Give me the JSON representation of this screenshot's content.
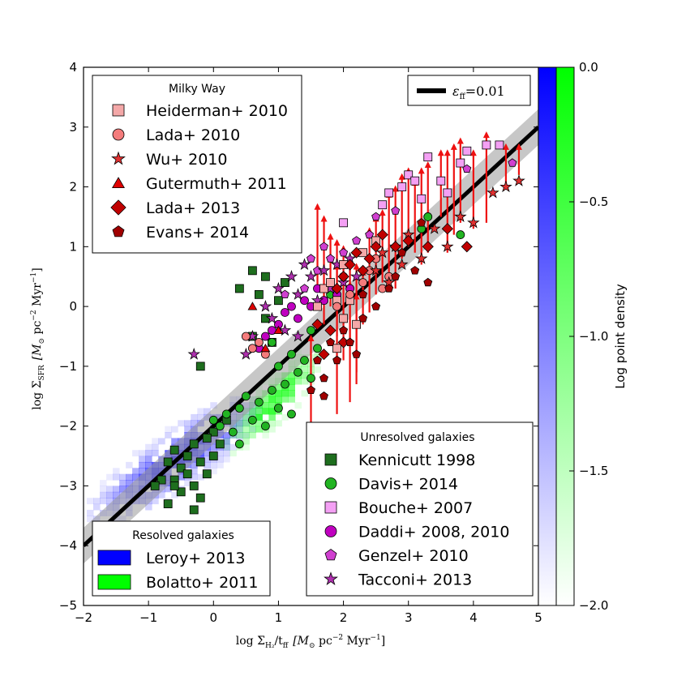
{
  "chart_data": {
    "type": "scatter",
    "xlabel_parts": {
      "base": "log Σ",
      "sub": "H₂",
      "mid": "/t",
      "sub2": "ff",
      "units": "[M",
      "sun": "⊙",
      "rest": " pc",
      "exp": "−2",
      "myr": " Myr",
      "exp2": "−1",
      "close": "]"
    },
    "ylabel_parts": {
      "base": "log Σ",
      "sub": "SFR",
      "units": "[M",
      "sun": "⊙",
      "rest": " pc",
      "exp": "−2",
      "myr": " Myr",
      "exp2": "−1",
      "close": "]"
    },
    "xlim": [
      -2,
      5
    ],
    "ylim": [
      -5,
      4
    ],
    "x_ticks": [
      "−2",
      "−1",
      "0",
      "1",
      "2",
      "3",
      "4",
      "5"
    ],
    "y_ticks": [
      "−5",
      "−4",
      "−3",
      "−2",
      "−1",
      "0",
      "1",
      "2",
      "3",
      "4"
    ],
    "fit_line": {
      "label_eps": "ε",
      "label_sub": "ff",
      "label_val": "=0.01",
      "slope": 1,
      "intercept": -2,
      "band": 0.3
    },
    "colorbar": {
      "label": "Log point density",
      "ticks": [
        "0.0",
        "−0.5",
        "−1.0",
        "−1.5",
        "−2.0"
      ],
      "range": [
        -2.0,
        0.0
      ]
    },
    "legends": {
      "milky_way": {
        "title": "Milky Way",
        "entries": [
          {
            "label": "Heiderman+ 2010",
            "marker": "square",
            "color": "#f4a8a8"
          },
          {
            "label": "Lada+ 2010",
            "marker": "circle",
            "color": "#f47c7c"
          },
          {
            "label": "Wu+ 2010",
            "marker": "star",
            "color": "#e03030"
          },
          {
            "label": "Gutermuth+ 2011",
            "marker": "triangle",
            "color": "#e00000"
          },
          {
            "label": "Lada+ 2013",
            "marker": "diamond",
            "color": "#c00000"
          },
          {
            "label": "Evans+ 2014",
            "marker": "pentagon",
            "color": "#a00000"
          }
        ]
      },
      "unresolved": {
        "title": "Unresolved galaxies",
        "entries": [
          {
            "label": "Kennicutt 1998",
            "marker": "square",
            "color": "#1e6e1e"
          },
          {
            "label": "Davis+ 2014",
            "marker": "circle",
            "color": "#22b422"
          },
          {
            "label": "Bouche+ 2007",
            "marker": "square",
            "color": "#f4a0f4"
          },
          {
            "label": "Daddi+ 2008, 2010",
            "marker": "circle",
            "color": "#c000c0"
          },
          {
            "label": "Genzel+ 2010",
            "marker": "pentagon",
            "color": "#d040d0"
          },
          {
            "label": "Tacconi+ 2013",
            "marker": "star",
            "color": "#b030b0"
          }
        ]
      },
      "resolved": {
        "title": "Resolved galaxies",
        "entries": [
          {
            "label": "Leroy+ 2013",
            "color": "#0000ff"
          },
          {
            "label": "Bolatto+ 2011",
            "color": "#00ff00"
          }
        ]
      }
    },
    "series": [
      {
        "name": "Kennicutt 1998",
        "marker": "square",
        "color": "#1e6e1e",
        "points": [
          [
            -0.7,
            -2.6
          ],
          [
            -0.6,
            -2.4
          ],
          [
            -0.5,
            -2.7
          ],
          [
            -0.4,
            -2.5
          ],
          [
            -0.3,
            -2.3
          ],
          [
            -0.2,
            -2.6
          ],
          [
            -0.1,
            -2.8
          ],
          [
            0.0,
            -2.5
          ],
          [
            -0.8,
            -2.9
          ],
          [
            -0.9,
            -3.0
          ],
          [
            -0.7,
            -3.3
          ],
          [
            -0.5,
            -3.1
          ],
          [
            -0.3,
            -3.0
          ],
          [
            -0.2,
            -3.2
          ],
          [
            -0.4,
            -2.8
          ],
          [
            -0.6,
            -2.9
          ],
          [
            0.0,
            -2.1
          ],
          [
            0.1,
            -2.3
          ],
          [
            -0.1,
            -2.2
          ],
          [
            0.2,
            -1.9
          ],
          [
            0.4,
            0.3
          ],
          [
            0.6,
            0.6
          ],
          [
            0.7,
            0.2
          ],
          [
            0.8,
            0.5
          ],
          [
            1.0,
            0.1
          ],
          [
            1.1,
            0.4
          ],
          [
            0.6,
            -0.5
          ],
          [
            0.9,
            -0.6
          ],
          [
            0.8,
            -0.2
          ],
          [
            -0.2,
            -1.0
          ],
          [
            -0.3,
            -3.4
          ],
          [
            -0.6,
            -3.0
          ]
        ]
      },
      {
        "name": "Davis+ 2014",
        "marker": "circle",
        "color": "#22b422",
        "points": [
          [
            0.4,
            -1.7
          ],
          [
            0.5,
            -1.5
          ],
          [
            0.6,
            -1.9
          ],
          [
            0.7,
            -1.6
          ],
          [
            0.8,
            -2.0
          ],
          [
            0.9,
            -1.4
          ],
          [
            1.0,
            -1.7
          ],
          [
            1.1,
            -1.3
          ],
          [
            1.2,
            -1.8
          ],
          [
            1.3,
            -1.1
          ],
          [
            1.4,
            -0.9
          ],
          [
            1.5,
            -1.2
          ],
          [
            1.6,
            -0.7
          ],
          [
            0.3,
            -2.1
          ],
          [
            0.2,
            -1.8
          ],
          [
            0.1,
            -2.0
          ],
          [
            1.0,
            -1.0
          ],
          [
            1.2,
            -0.8
          ],
          [
            0.9,
            -0.6
          ],
          [
            1.5,
            -0.4
          ],
          [
            1.7,
            0.1
          ],
          [
            1.8,
            0.2
          ],
          [
            3.2,
            1.3
          ],
          [
            3.3,
            1.5
          ],
          [
            3.8,
            1.2
          ],
          [
            0.0,
            -1.9
          ],
          [
            0.4,
            -2.3
          ]
        ]
      },
      {
        "name": "Bouche+ 2007",
        "marker": "square",
        "color": "#f4a0f4",
        "points": [
          [
            2.0,
            1.4
          ],
          [
            2.6,
            1.7
          ],
          [
            2.7,
            1.9
          ],
          [
            2.9,
            2.0
          ],
          [
            3.0,
            2.2
          ],
          [
            3.1,
            2.1
          ],
          [
            3.3,
            2.5
          ],
          [
            3.5,
            2.1
          ],
          [
            3.6,
            1.9
          ],
          [
            3.8,
            2.4
          ],
          [
            3.9,
            2.6
          ],
          [
            4.2,
            2.7
          ],
          [
            4.4,
            2.7
          ],
          [
            3.2,
            1.8
          ]
        ]
      },
      {
        "name": "Daddi+ 2008, 2010",
        "marker": "circle",
        "color": "#c000c0",
        "points": [
          [
            0.9,
            -0.4
          ],
          [
            1.1,
            -0.1
          ],
          [
            1.2,
            0.0
          ],
          [
            1.3,
            -0.2
          ],
          [
            1.4,
            0.1
          ],
          [
            1.5,
            0.0
          ],
          [
            1.6,
            0.3
          ],
          [
            1.7,
            0.1
          ],
          [
            1.8,
            0.4
          ],
          [
            1.9,
            0.2
          ],
          [
            2.0,
            0.5
          ],
          [
            2.1,
            0.3
          ],
          [
            0.7,
            -0.7
          ],
          [
            0.8,
            -0.5
          ],
          [
            1.0,
            -0.3
          ]
        ]
      },
      {
        "name": "Genzel+ 2010",
        "marker": "pentagon",
        "color": "#d040d0",
        "points": [
          [
            1.4,
            0.3
          ],
          [
            1.6,
            0.6
          ],
          [
            1.8,
            0.8
          ],
          [
            2.0,
            0.9
          ],
          [
            2.2,
            1.1
          ],
          [
            2.4,
            1.2
          ],
          [
            1.5,
            0.8
          ],
          [
            1.7,
            1.0
          ],
          [
            2.5,
            1.5
          ],
          [
            2.8,
            1.6
          ],
          [
            3.9,
            2.3
          ],
          [
            4.6,
            2.4
          ],
          [
            1.1,
            0.2
          ]
        ]
      },
      {
        "name": "Tacconi+ 2013",
        "marker": "star",
        "color": "#b030b0",
        "points": [
          [
            -0.3,
            -0.8
          ],
          [
            0.8,
            0.0
          ],
          [
            1.0,
            0.3
          ],
          [
            1.2,
            0.5
          ],
          [
            1.3,
            0.2
          ],
          [
            1.4,
            0.7
          ],
          [
            1.5,
            0.5
          ],
          [
            1.6,
            0.1
          ],
          [
            1.7,
            0.6
          ],
          [
            1.8,
            0.3
          ],
          [
            1.9,
            0.7
          ],
          [
            2.0,
            0.4
          ],
          [
            2.1,
            0.8
          ],
          [
            2.2,
            0.5
          ],
          [
            0.9,
            -0.2
          ],
          [
            1.1,
            -0.4
          ],
          [
            1.3,
            -0.5
          ],
          [
            0.6,
            -0.5
          ],
          [
            0.5,
            -0.8
          ]
        ]
      },
      {
        "name": "Heiderman+ 2010",
        "marker": "square",
        "color": "#f4a8a8",
        "points": [
          [
            1.6,
            0.0
          ],
          [
            1.7,
            0.3
          ],
          [
            1.8,
            0.4
          ],
          [
            1.9,
            0.1
          ],
          [
            2.0,
            -0.2
          ],
          [
            2.1,
            0.1
          ],
          [
            2.0,
            0.7
          ],
          [
            2.3,
            0.9
          ],
          [
            2.5,
            1.1
          ],
          [
            1.9,
            -0.7
          ],
          [
            2.2,
            -0.3
          ]
        ]
      },
      {
        "name": "Lada+ 2010",
        "marker": "circle",
        "color": "#f47c7c",
        "points": [
          [
            0.5,
            -0.5
          ],
          [
            0.6,
            -0.7
          ],
          [
            0.7,
            -0.6
          ],
          [
            0.8,
            -0.8
          ],
          [
            1.9,
            0.0
          ],
          [
            2.1,
            0.2
          ],
          [
            2.3,
            0.4
          ],
          [
            2.4,
            0.6
          ],
          [
            2.5,
            0.8
          ],
          [
            2.6,
            0.3
          ],
          [
            2.7,
            0.5
          ]
        ]
      },
      {
        "name": "Wu+ 2010",
        "marker": "star",
        "color": "#e03030",
        "points": [
          [
            2.5,
            0.6
          ],
          [
            2.6,
            0.9
          ],
          [
            2.7,
            0.4
          ],
          [
            2.8,
            1.0
          ],
          [
            2.9,
            0.7
          ],
          [
            3.0,
            1.2
          ],
          [
            3.2,
            0.8
          ],
          [
            3.4,
            1.3
          ],
          [
            3.6,
            1.0
          ],
          [
            3.8,
            1.5
          ],
          [
            4.0,
            1.4
          ],
          [
            4.3,
            1.9
          ],
          [
            4.5,
            2.0
          ],
          [
            4.7,
            2.1
          ]
        ]
      },
      {
        "name": "Gutermuth+ 2011",
        "marker": "triangle",
        "color": "#e00000",
        "points": [
          [
            0.6,
            0.0
          ],
          [
            0.8,
            -0.7
          ],
          [
            1.0,
            -0.4
          ]
        ]
      },
      {
        "name": "Lada+ 2013",
        "marker": "diamond",
        "color": "#c00000",
        "points": [
          [
            1.9,
            0.3
          ],
          [
            2.0,
            0.5
          ],
          [
            2.1,
            0.7
          ],
          [
            2.2,
            0.9
          ],
          [
            2.3,
            0.6
          ],
          [
            2.4,
            0.8
          ],
          [
            2.5,
            1.0
          ],
          [
            2.6,
            1.2
          ],
          [
            2.8,
            1.0
          ],
          [
            3.0,
            1.1
          ],
          [
            3.3,
            1.0
          ],
          [
            3.6,
            1.3
          ],
          [
            3.9,
            1.0
          ],
          [
            1.6,
            -0.3
          ],
          [
            1.8,
            -0.4
          ],
          [
            2.0,
            -0.6
          ],
          [
            1.7,
            -0.8
          ]
        ]
      },
      {
        "name": "Evans+ 2014",
        "marker": "pentagon",
        "color": "#a00000",
        "points": [
          [
            1.6,
            -0.9
          ],
          [
            1.7,
            -1.2
          ],
          [
            1.8,
            -0.6
          ],
          [
            1.9,
            -0.9
          ],
          [
            2.0,
            -0.4
          ],
          [
            2.1,
            -0.6
          ],
          [
            2.2,
            -0.8
          ],
          [
            2.3,
            -0.2
          ],
          [
            1.5,
            -1.4
          ],
          [
            1.7,
            -1.5
          ],
          [
            2.3,
            0.2
          ],
          [
            2.5,
            0.0
          ],
          [
            2.7,
            0.3
          ],
          [
            2.8,
            0.5
          ],
          [
            3.1,
            0.6
          ],
          [
            3.3,
            0.4
          ],
          [
            2.9,
            0.9
          ],
          [
            3.2,
            1.4
          ]
        ]
      }
    ],
    "upper_limits": [
      [
        1.6,
        1.7,
        0.3
      ],
      [
        1.7,
        1.5,
        -0.3
      ],
      [
        1.8,
        1.2,
        0.0
      ],
      [
        1.9,
        1.1,
        -0.5
      ],
      [
        2.0,
        1.0,
        -0.9
      ],
      [
        2.1,
        0.8,
        -0.6
      ],
      [
        2.2,
        0.7,
        -1.1
      ],
      [
        2.3,
        0.6,
        -0.3
      ],
      [
        2.4,
        1.3,
        -0.1
      ],
      [
        2.5,
        1.5,
        0.2
      ],
      [
        2.6,
        1.6,
        0.4
      ],
      [
        2.7,
        1.9,
        0.5
      ],
      [
        2.8,
        2.0,
        0.3
      ],
      [
        2.9,
        2.2,
        0.8
      ],
      [
        3.0,
        2.3,
        1.0
      ],
      [
        3.1,
        2.1,
        0.9
      ],
      [
        3.2,
        2.3,
        0.7
      ],
      [
        3.3,
        2.4,
        0.9
      ],
      [
        3.5,
        2.6,
        1.5
      ],
      [
        3.6,
        2.6,
        0.9
      ],
      [
        3.7,
        2.7,
        1.2
      ],
      [
        3.8,
        2.8,
        1.4
      ],
      [
        4.0,
        2.6,
        1.3
      ],
      [
        4.2,
        2.9,
        1.4
      ],
      [
        4.5,
        2.7,
        2.0
      ],
      [
        4.7,
        2.7,
        2.2
      ],
      [
        1.9,
        0.7,
        -1.8
      ],
      [
        2.1,
        0.4,
        -1.6
      ],
      [
        2.2,
        0.2,
        -1.3
      ],
      [
        1.5,
        -0.5,
        -2.0
      ]
    ]
  }
}
